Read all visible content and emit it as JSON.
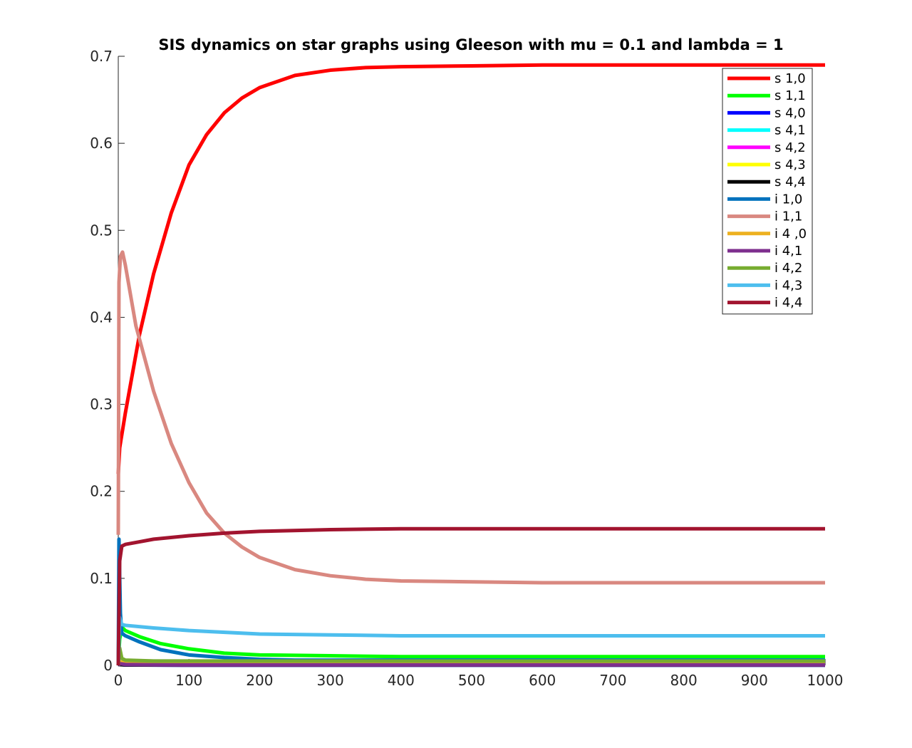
{
  "chart_data": {
    "type": "line",
    "title": "SIS dynamics on star graphs using Gleeson with mu = 0.1 and lambda = 1",
    "xlabel": "",
    "ylabel": "",
    "xlim": [
      0,
      1000
    ],
    "ylim": [
      0,
      0.7
    ],
    "xticks": [
      0,
      100,
      200,
      300,
      400,
      500,
      600,
      700,
      800,
      900,
      1000
    ],
    "yticks": [
      0,
      0.1,
      0.2,
      0.3,
      0.4,
      0.5,
      0.6,
      0.7
    ],
    "xtick_labels": [
      "0",
      "100",
      "200",
      "300",
      "400",
      "500",
      "600",
      "700",
      "800",
      "900",
      "1000"
    ],
    "ytick_labels": [
      "0",
      "0.1",
      "0.2",
      "0.3",
      "0.4",
      "0.5",
      "0.6",
      "0.7"
    ],
    "grid": false,
    "legend_position": "top-right",
    "series": [
      {
        "name": "s 1,0",
        "color": "#ff0000",
        "x": [
          0,
          2,
          10,
          30,
          50,
          75,
          100,
          125,
          150,
          175,
          200,
          250,
          300,
          350,
          400,
          500,
          600,
          800,
          1000
        ],
        "y": [
          0.22,
          0.25,
          0.29,
          0.38,
          0.45,
          0.52,
          0.575,
          0.61,
          0.635,
          0.652,
          0.664,
          0.678,
          0.684,
          0.687,
          0.688,
          0.689,
          0.69,
          0.69,
          0.69
        ]
      },
      {
        "name": "s 1,1",
        "color": "#00ff00",
        "x": [
          0,
          2,
          5,
          10,
          30,
          60,
          100,
          150,
          200,
          300,
          400,
          500,
          700,
          1000
        ],
        "y": [
          0.005,
          0.03,
          0.044,
          0.04,
          0.033,
          0.025,
          0.019,
          0.014,
          0.012,
          0.011,
          0.01,
          0.01,
          0.01,
          0.01
        ]
      },
      {
        "name": "s 4,0",
        "color": "#0000ff",
        "x": [
          0,
          2,
          10,
          50,
          100,
          1000
        ],
        "y": [
          0.002,
          0.001,
          0.0005,
          0.0003,
          0.0002,
          0.0002
        ]
      },
      {
        "name": "s 4,1",
        "color": "#00ffff",
        "x": [
          0,
          2,
          10,
          50,
          100,
          1000
        ],
        "y": [
          0.003,
          0.0015,
          0.0008,
          0.0005,
          0.0004,
          0.0004
        ]
      },
      {
        "name": "s 4,2",
        "color": "#ff00ff",
        "x": [
          0,
          2,
          10,
          50,
          100,
          1000
        ],
        "y": [
          0.002,
          0.001,
          0.0008,
          0.0006,
          0.0005,
          0.0005
        ]
      },
      {
        "name": "s 4,3",
        "color": "#ffff00",
        "x": [
          0,
          2,
          10,
          50,
          100,
          1000
        ],
        "y": [
          0.004,
          0.003,
          0.002,
          0.0015,
          0.0012,
          0.0012
        ]
      },
      {
        "name": "s 4,4",
        "color": "#000000",
        "x": [
          0,
          2,
          10,
          50,
          100,
          1000
        ],
        "y": [
          0.001,
          0.0008,
          0.0005,
          0.0004,
          0.0003,
          0.0003
        ]
      },
      {
        "name": "i 1,0",
        "color": "#0072bd",
        "x": [
          0,
          1,
          3,
          5,
          10,
          30,
          60,
          100,
          150,
          200,
          250,
          300,
          400,
          600,
          1000
        ],
        "y": [
          0.0,
          0.145,
          0.06,
          0.037,
          0.034,
          0.027,
          0.018,
          0.012,
          0.009,
          0.007,
          0.006,
          0.006,
          0.006,
          0.006,
          0.006
        ]
      },
      {
        "name": "i 1,1",
        "color": "#d98880",
        "x": [
          0,
          1,
          3,
          6,
          10,
          25,
          50,
          75,
          100,
          125,
          150,
          175,
          200,
          250,
          300,
          350,
          400,
          500,
          600,
          700,
          800,
          1000
        ],
        "y": [
          0.15,
          0.44,
          0.47,
          0.475,
          0.46,
          0.39,
          0.315,
          0.255,
          0.21,
          0.175,
          0.152,
          0.136,
          0.124,
          0.11,
          0.103,
          0.099,
          0.097,
          0.096,
          0.095,
          0.095,
          0.095,
          0.095
        ]
      },
      {
        "name": "i 4 ,0",
        "color": "#edb120",
        "x": [
          0,
          2,
          10,
          50,
          100,
          1000
        ],
        "y": [
          0.003,
          0.004,
          0.004,
          0.004,
          0.004,
          0.004
        ]
      },
      {
        "name": "i 4,1",
        "color": "#7e2f8e",
        "x": [
          0,
          2,
          10,
          50,
          100,
          1000
        ],
        "y": [
          0.0,
          0.002,
          0.001,
          0.0006,
          0.0005,
          0.0005
        ]
      },
      {
        "name": "i 4,2",
        "color": "#77ac30",
        "x": [
          0,
          2,
          5,
          10,
          50,
          100,
          1000
        ],
        "y": [
          0.0,
          0.02,
          0.008,
          0.006,
          0.005,
          0.005,
          0.005
        ]
      },
      {
        "name": "i 4,3",
        "color": "#4dbeee",
        "x": [
          0,
          2,
          5,
          10,
          50,
          100,
          200,
          300,
          400,
          1000
        ],
        "y": [
          0.0,
          0.055,
          0.047,
          0.046,
          0.043,
          0.04,
          0.036,
          0.035,
          0.034,
          0.034
        ]
      },
      {
        "name": "i 4,4",
        "color": "#a2142f",
        "x": [
          0,
          2,
          5,
          10,
          30,
          50,
          100,
          150,
          200,
          300,
          400,
          500,
          1000
        ],
        "y": [
          0.0,
          0.12,
          0.137,
          0.139,
          0.142,
          0.145,
          0.149,
          0.152,
          0.154,
          0.156,
          0.157,
          0.157,
          0.157
        ]
      }
    ]
  }
}
